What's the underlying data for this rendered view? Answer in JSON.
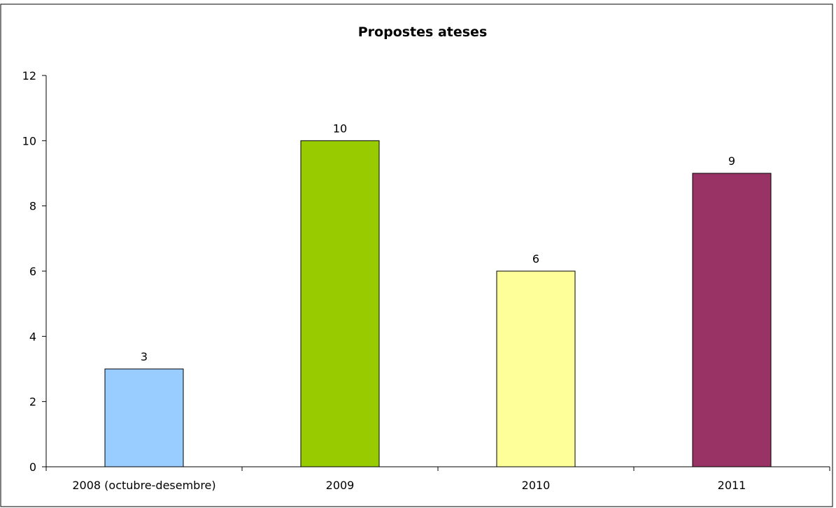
{
  "chart_data": {
    "type": "bar",
    "title": "Propostes ateses",
    "xlabel": "",
    "ylabel": "",
    "categories": [
      "2008 (octubre-desembre)",
      "2009",
      "2010",
      "2011"
    ],
    "values": [
      3,
      10,
      6,
      9
    ],
    "colors": [
      "#99ccff",
      "#99cc00",
      "#ffff99",
      "#993366"
    ],
    "ylim": [
      0,
      12
    ],
    "yticks": [
      0,
      2,
      4,
      6,
      8,
      10,
      12
    ],
    "grid": false,
    "legend": "none"
  }
}
